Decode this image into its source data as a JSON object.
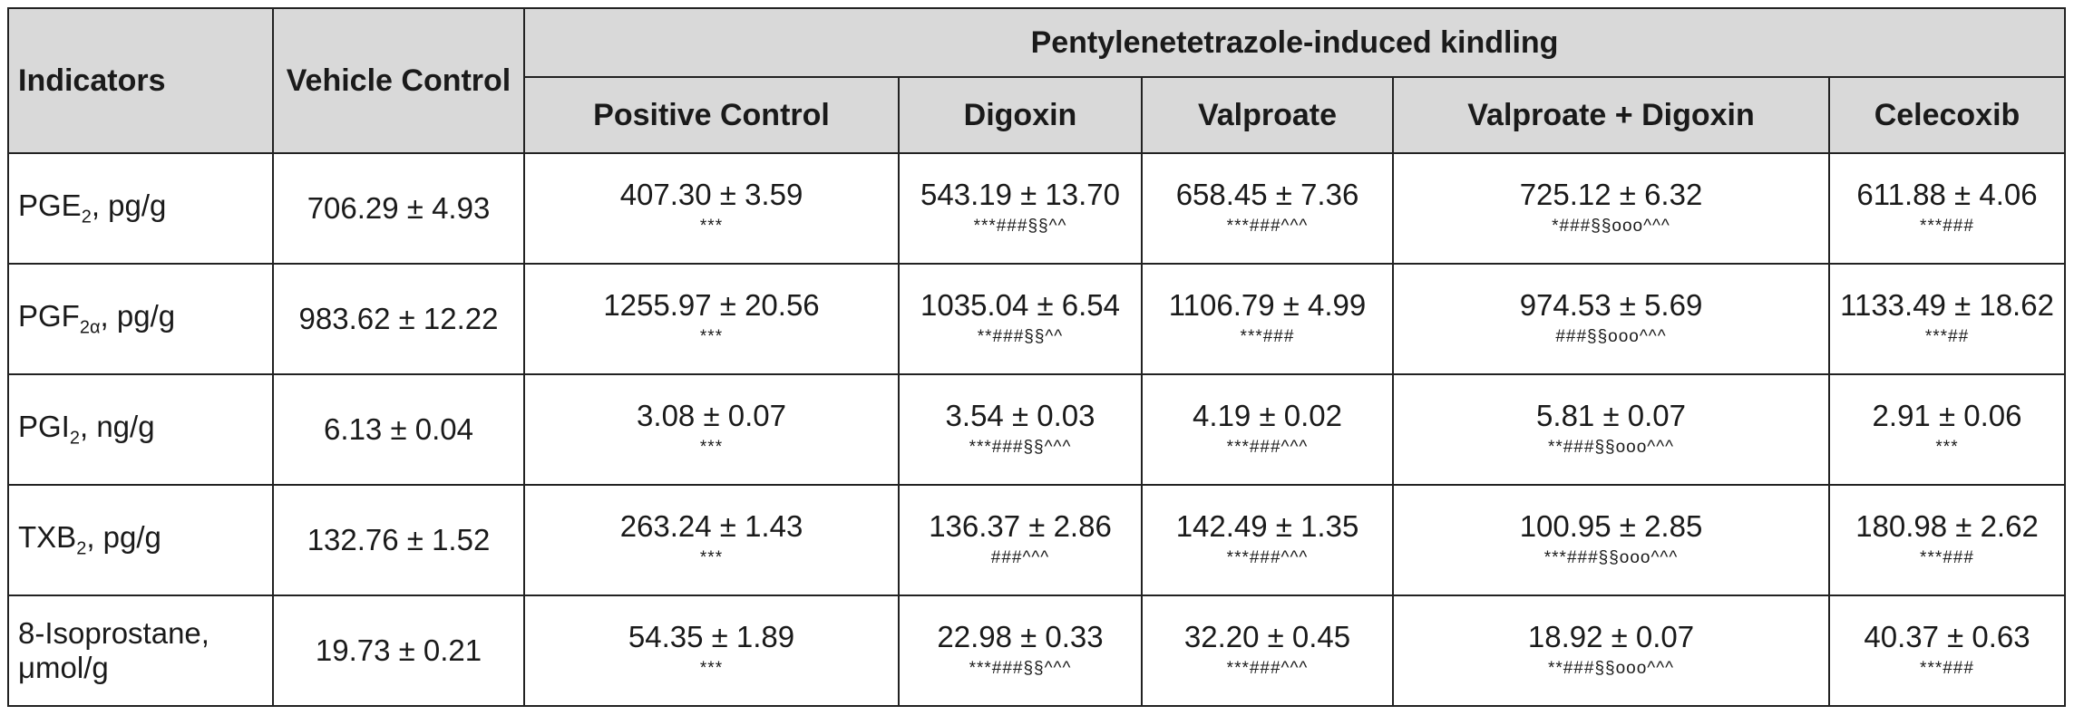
{
  "header": {
    "indicators": "Indicators",
    "vehicle": "Vehicle Control",
    "group": "Pentylenetetrazole-induced kindling",
    "columns": [
      "Positive Control",
      "Digoxin",
      "Valproate",
      "Valproate + Digoxin",
      "Celecoxib"
    ]
  },
  "rows": [
    {
      "indicator": {
        "name": "PGE",
        "sub": "2",
        "unit": ", pg/g"
      },
      "vehicle": "706.29 ± 4.93",
      "cells": [
        {
          "value": "407.30 ± 3.59",
          "sig": "***"
        },
        {
          "value": "543.19 ± 13.70",
          "sig": "***###§§^^"
        },
        {
          "value": "658.45 ± 7.36",
          "sig": "***###^^^"
        },
        {
          "value": "725.12 ± 6.32",
          "sig": "*###§§ooo^^^"
        },
        {
          "value": "611.88 ± 4.06",
          "sig": "***###"
        }
      ]
    },
    {
      "indicator": {
        "name": "PGF",
        "sub": "2α",
        "unit": ", pg/g"
      },
      "vehicle": "983.62 ± 12.22",
      "cells": [
        {
          "value": "1255.97 ± 20.56",
          "sig": "***"
        },
        {
          "value": "1035.04 ± 6.54",
          "sig": "**###§§^^"
        },
        {
          "value": "1106.79 ± 4.99",
          "sig": "***###"
        },
        {
          "value": "974.53 ± 5.69",
          "sig": "###§§ooo^^^"
        },
        {
          "value": "1133.49 ± 18.62",
          "sig": "***##"
        }
      ]
    },
    {
      "indicator": {
        "name": "PGI",
        "sub": "2",
        "unit": ", ng/g"
      },
      "vehicle": "6.13 ± 0.04",
      "cells": [
        {
          "value": "3.08 ± 0.07",
          "sig": "***"
        },
        {
          "value": "3.54 ± 0.03",
          "sig": "***###§§^^^"
        },
        {
          "value": "4.19 ± 0.02",
          "sig": "***###^^^"
        },
        {
          "value": "5.81 ± 0.07",
          "sig": "**###§§ooo^^^"
        },
        {
          "value": "2.91 ± 0.06",
          "sig": "***"
        }
      ]
    },
    {
      "indicator": {
        "name": "TXB",
        "sub": "2",
        "unit": ", pg/g"
      },
      "vehicle": "132.76 ± 1.52",
      "cells": [
        {
          "value": "263.24 ± 1.43",
          "sig": "***"
        },
        {
          "value": "136.37 ± 2.86",
          "sig": "###^^^"
        },
        {
          "value": "142.49 ± 1.35",
          "sig": "***###^^^"
        },
        {
          "value": "100.95 ± 2.85",
          "sig": "***###§§ooo^^^"
        },
        {
          "value": "180.98 ± 2.62",
          "sig": "***###"
        }
      ]
    },
    {
      "indicator": {
        "name": "8-Isoprostane,",
        "sub": "",
        "unit": "μmol/g"
      },
      "vehicle": "19.73 ± 0.21",
      "cells": [
        {
          "value": "54.35 ± 1.89",
          "sig": "***"
        },
        {
          "value": "22.98 ± 0.33",
          "sig": "***###§§^^^"
        },
        {
          "value": "32.20 ± 0.45",
          "sig": "***###^^^"
        },
        {
          "value": "18.92 ± 0.07",
          "sig": "**###§§ooo^^^"
        },
        {
          "value": "40.37 ± 0.63",
          "sig": "***###"
        }
      ]
    }
  ]
}
